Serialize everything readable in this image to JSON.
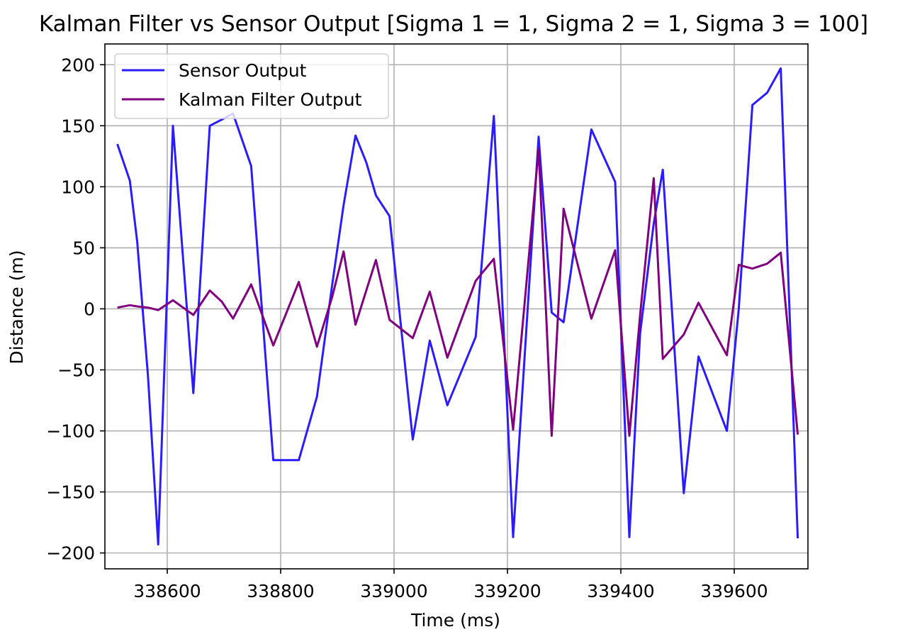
{
  "chart_data": {
    "type": "line",
    "title": "Kalman Filter vs Sensor Output [Sigma 1 = 1, Sigma 2 = 1, Sigma 3 = 100]",
    "xlabel": "Time (ms)",
    "ylabel": "Distance (m)",
    "xlim": [
      338490,
      339730
    ],
    "ylim": [
      -213,
      217
    ],
    "xticks": [
      338600,
      338800,
      339000,
      339200,
      339400,
      339600
    ],
    "xtick_labels": [
      "338600",
      "338800",
      "339000",
      "339200",
      "339400",
      "339600"
    ],
    "yticks": [
      -200,
      -150,
      -100,
      -50,
      0,
      50,
      100,
      150,
      200
    ],
    "ytick_labels": [
      "−200",
      "−150",
      "−100",
      "−50",
      "0",
      "50",
      "100",
      "150",
      "200"
    ],
    "grid": true,
    "legend_position": "upper-left",
    "series": [
      {
        "name": "Sensor Output",
        "color": "#2b1cff",
        "x": [
          338512,
          338534,
          338547,
          338566,
          338584,
          338610,
          338646,
          338675,
          338696,
          338716,
          338748,
          338787,
          338832,
          338864,
          338891,
          338911,
          338932,
          338951,
          338968,
          338992,
          339033,
          339063,
          339094,
          339144,
          339176,
          339210,
          339255,
          339278,
          339299,
          339348,
          339390,
          339415,
          339434,
          339458,
          339474,
          339511,
          339537,
          339587,
          339608,
          339632,
          339658,
          339682,
          339712
        ],
        "y": [
          135,
          105,
          55,
          -55,
          -193,
          150,
          -69,
          150,
          155,
          160,
          117,
          -124,
          -124,
          -72,
          20,
          85,
          142,
          120,
          93,
          76,
          -107,
          -26,
          -79,
          -23,
          158,
          -187,
          141,
          -3,
          -11,
          147,
          104,
          -187,
          -20,
          70,
          114,
          -151,
          -39,
          -100,
          0,
          167,
          177,
          197,
          -188
        ]
      },
      {
        "name": "Kalman Filter Output",
        "color": "#800080",
        "x": [
          338512,
          338534,
          338547,
          338566,
          338584,
          338610,
          338646,
          338675,
          338696,
          338716,
          338748,
          338787,
          338832,
          338864,
          338891,
          338911,
          338932,
          338951,
          338968,
          338992,
          339033,
          339063,
          339094,
          339144,
          339176,
          339210,
          339255,
          339278,
          339299,
          339348,
          339390,
          339415,
          339434,
          339458,
          339474,
          339511,
          339537,
          339587,
          339608,
          339632,
          339658,
          339682,
          339712
        ],
        "y": [
          1,
          3,
          2,
          1,
          -1,
          7,
          -5,
          15,
          6,
          -8,
          20,
          -30,
          22,
          -31,
          10,
          47,
          -13,
          15,
          40,
          -9,
          -24,
          14,
          -40,
          23,
          41,
          -99,
          131,
          -104,
          82,
          -8,
          48,
          -104,
          -5,
          107,
          -41,
          -21,
          5,
          -38,
          36,
          33,
          37,
          46,
          -103
        ]
      }
    ]
  }
}
